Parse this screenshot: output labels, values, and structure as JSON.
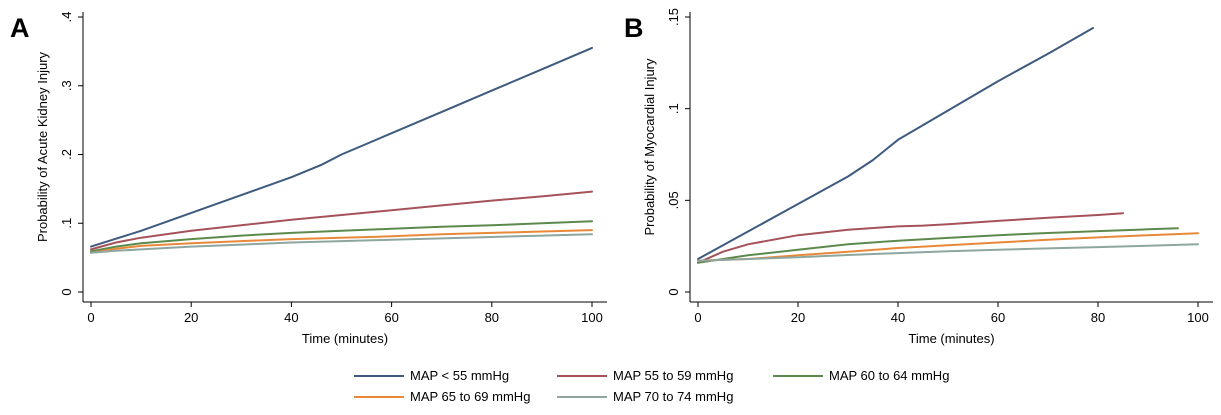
{
  "chart_data": [
    {
      "type": "line",
      "panel_label": "A",
      "title": "",
      "xlabel": "Time (minutes)",
      "ylabel": "Probability of Acute Kidney Injury",
      "xlim": [
        0,
        100
      ],
      "ylim": [
        0,
        0.4
      ],
      "xticks": [
        0,
        20,
        40,
        60,
        80,
        100
      ],
      "xtick_labels": [
        "0",
        "20",
        "40",
        "60",
        "80",
        "100"
      ],
      "yticks": [
        0,
        0.1,
        0.2,
        0.3,
        0.4
      ],
      "ytick_labels": [
        "0",
        ".1",
        ".2",
        ".3",
        ".4"
      ],
      "grid": false,
      "series": [
        {
          "name": "MAP < 55 mmHg",
          "color": "#3e5a7f",
          "x": [
            0,
            10,
            20,
            30,
            40,
            46,
            50,
            60,
            70,
            80,
            90,
            100
          ],
          "y": [
            0.066,
            0.089,
            0.115,
            0.141,
            0.167,
            0.185,
            0.2,
            0.231,
            0.262,
            0.293,
            0.324,
            0.355
          ]
        },
        {
          "name": "MAP 55 to 59 mmHg",
          "color": "#a6525a",
          "x": [
            0,
            5,
            10,
            20,
            30,
            40,
            50,
            60,
            70,
            80,
            90,
            100
          ],
          "y": [
            0.062,
            0.072,
            0.079,
            0.089,
            0.097,
            0.105,
            0.112,
            0.119,
            0.126,
            0.133,
            0.139,
            0.146
          ]
        },
        {
          "name": "MAP 60 to 64 mmHg",
          "color": "#5c8a4d",
          "x": [
            0,
            5,
            10,
            20,
            30,
            40,
            50,
            60,
            70,
            80,
            90,
            100
          ],
          "y": [
            0.059,
            0.066,
            0.071,
            0.077,
            0.082,
            0.086,
            0.089,
            0.092,
            0.095,
            0.097,
            0.1,
            0.103
          ]
        },
        {
          "name": "MAP 65 to 69 mmHg",
          "color": "#e8893a",
          "x": [
            0,
            5,
            10,
            20,
            30,
            40,
            50,
            60,
            70,
            80,
            90,
            100
          ],
          "y": [
            0.057,
            0.063,
            0.067,
            0.071,
            0.074,
            0.077,
            0.079,
            0.081,
            0.084,
            0.086,
            0.088,
            0.09
          ]
        },
        {
          "name": "MAP 70 to 74 mmHg",
          "color": "#8ea6a0",
          "x": [
            0,
            5,
            10,
            20,
            30,
            40,
            50,
            60,
            70,
            80,
            90,
            100
          ],
          "y": [
            0.057,
            0.06,
            0.062,
            0.066,
            0.069,
            0.072,
            0.074,
            0.076,
            0.078,
            0.08,
            0.082,
            0.084
          ]
        }
      ]
    },
    {
      "type": "line",
      "panel_label": "B",
      "title": "",
      "xlabel": "Time (minutes)",
      "ylabel": "Probability of Myocardial Injury",
      "xlim": [
        0,
        100
      ],
      "ylim": [
        0,
        0.15
      ],
      "xticks": [
        0,
        20,
        40,
        60,
        80,
        100
      ],
      "xtick_labels": [
        "0",
        "20",
        "40",
        "60",
        "80",
        "100"
      ],
      "yticks": [
        0,
        0.05,
        0.1,
        0.15
      ],
      "ytick_labels": [
        "0",
        ".05",
        ".1",
        ".15"
      ],
      "grid": false,
      "series": [
        {
          "name": "MAP < 55 mmHg",
          "color": "#3e5a7f",
          "x": [
            0,
            10,
            20,
            30,
            35,
            40,
            50,
            60,
            70,
            79
          ],
          "y": [
            0.018,
            0.033,
            0.048,
            0.063,
            0.072,
            0.083,
            0.099,
            0.115,
            0.13,
            0.144
          ]
        },
        {
          "name": "MAP 55 to 59 mmHg",
          "color": "#a6525a",
          "x": [
            0,
            5,
            10,
            20,
            30,
            40,
            45,
            50,
            60,
            70,
            80,
            85
          ],
          "y": [
            0.016,
            0.022,
            0.026,
            0.031,
            0.034,
            0.0358,
            0.0362,
            0.037,
            0.0388,
            0.0405,
            0.042,
            0.043
          ]
        },
        {
          "name": "MAP 60 to 64 mmHg",
          "color": "#5c8a4d",
          "x": [
            0,
            10,
            20,
            30,
            40,
            50,
            60,
            70,
            80,
            90,
            96
          ],
          "y": [
            0.016,
            0.02,
            0.023,
            0.026,
            0.028,
            0.0295,
            0.031,
            0.0322,
            0.0332,
            0.0342,
            0.0348
          ]
        },
        {
          "name": "MAP 65 to 69 mmHg",
          "color": "#e8893a",
          "x": [
            0,
            10,
            20,
            30,
            40,
            50,
            60,
            70,
            80,
            90,
            100
          ],
          "y": [
            0.017,
            0.018,
            0.02,
            0.022,
            0.024,
            0.0255,
            0.027,
            0.0285,
            0.0298,
            0.031,
            0.032
          ]
        },
        {
          "name": "MAP 70 to 74 mmHg",
          "color": "#8ea6a0",
          "x": [
            0,
            10,
            20,
            30,
            40,
            50,
            60,
            70,
            80,
            90,
            100
          ],
          "y": [
            0.017,
            0.018,
            0.019,
            0.0202,
            0.0212,
            0.0222,
            0.023,
            0.0238,
            0.0245,
            0.0252,
            0.026
          ]
        }
      ]
    }
  ],
  "legend": {
    "placement": "bottom",
    "entries": [
      {
        "label": "MAP < 55 mmHg",
        "color": "#3e5a7f"
      },
      {
        "label": "MAP 55 to 59 mmHg",
        "color": "#a6525a"
      },
      {
        "label": "MAP 60 to 64 mmHg",
        "color": "#5c8a4d"
      },
      {
        "label": "MAP 65 to 69 mmHg",
        "color": "#e8893a"
      },
      {
        "label": "MAP 70 to 74 mmHg",
        "color": "#8ea6a0"
      }
    ]
  }
}
